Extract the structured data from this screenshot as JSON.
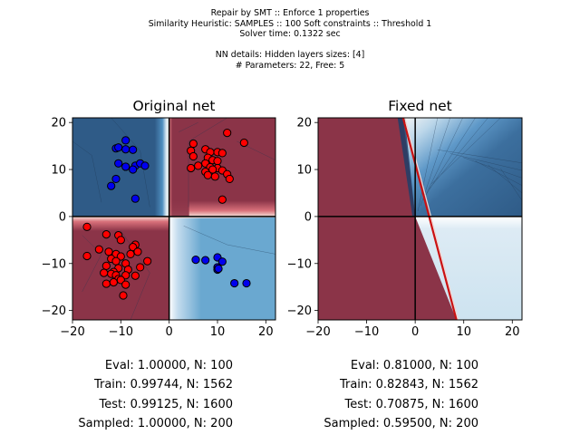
{
  "figure": {
    "suptitle_lines": [
      "Repair by SMT :: Enforce 1 properties",
      "Similarity Heuristic: SAMPLES :: 100 Soft constraints :: Threshold 1",
      "Solver time: 0.1322 sec",
      "",
      "NN details: Hidden layers sizes: [4]",
      "# Parameters: 22, Free: 5"
    ]
  },
  "colors": {
    "dark_blue": "#2f5b87",
    "mid_blue": "#6aa8d0",
    "light_blue": "#cde3f0",
    "dark_red": "#8b3448",
    "point_red": "#ff0000",
    "point_blue": "#0000ee",
    "boundary_red": "#cc1111"
  },
  "chart_data": [
    {
      "type": "scatter",
      "title": "Original net",
      "xlim": [
        -20,
        22
      ],
      "ylim": [
        -22,
        21
      ],
      "xticks": [
        -20,
        -10,
        0,
        10,
        20
      ],
      "yticks": [
        -20,
        -10,
        0,
        10,
        20
      ],
      "grid": false,
      "stats": [
        "Eval: 1.00000, N: 100",
        "Train: 0.99744, N: 1562",
        "Test: 0.99125, N: 1600",
        "Sampled: 1.00000, N: 200"
      ],
      "series": [
        {
          "color": "blue",
          "points": [
            [
              -11,
              14.5
            ],
            [
              -10.5,
              14.7
            ],
            [
              -9,
              14.3
            ],
            [
              -7.5,
              14.2
            ],
            [
              -9,
              16.2
            ],
            [
              -10.5,
              11.3
            ],
            [
              -9,
              10.6
            ],
            [
              -7,
              10.8
            ],
            [
              -6,
              11.3
            ],
            [
              -5,
              10.8
            ],
            [
              -7.5,
              10
            ],
            [
              -11,
              8
            ],
            [
              -12,
              6.5
            ],
            [
              -7,
              3.8
            ],
            [
              5.5,
              -9.2
            ],
            [
              7.5,
              -9.3
            ],
            [
              10,
              -8.7
            ],
            [
              11,
              -9.6
            ],
            [
              10,
              -10.8
            ],
            [
              10,
              -11.3
            ],
            [
              10.2,
              -11.1
            ],
            [
              13.5,
              -14.2
            ],
            [
              16,
              -14.2
            ]
          ]
        },
        {
          "color": "red",
          "points": [
            [
              -17,
              -2.2
            ],
            [
              -17,
              -8.4
            ],
            [
              -14.5,
              -7
            ],
            [
              -13,
              -3.8
            ],
            [
              -10.5,
              -4
            ],
            [
              -10,
              -5
            ],
            [
              -12.5,
              -7.5
            ],
            [
              -11,
              -8
            ],
            [
              -10,
              -8.5
            ],
            [
              -7,
              -6
            ],
            [
              -7.5,
              -6.5
            ],
            [
              -6.5,
              -7.5
            ],
            [
              -8,
              -8
            ],
            [
              -12,
              -9
            ],
            [
              -11,
              -9.5
            ],
            [
              -9,
              -10
            ],
            [
              -13,
              -10.5
            ],
            [
              -10.5,
              -11
            ],
            [
              -8.5,
              -11.3
            ],
            [
              -6,
              -10.8
            ],
            [
              -4.5,
              -9.5
            ],
            [
              -11.5,
              -11.8
            ],
            [
              -12,
              -12.2
            ],
            [
              -13.5,
              -12
            ],
            [
              -11,
              -12.5
            ],
            [
              -9,
              -12.5
            ],
            [
              -7,
              -12.6
            ],
            [
              -10.5,
              -13.3
            ],
            [
              -10,
              -13.5
            ],
            [
              -13,
              -14.3
            ],
            [
              -11.5,
              -14
            ],
            [
              -9,
              -14.5
            ],
            [
              -9.5,
              -16.8
            ],
            [
              12,
              17.8
            ],
            [
              15.5,
              15.7
            ],
            [
              5,
              15.5
            ],
            [
              4.5,
              14
            ],
            [
              7.5,
              14.3
            ],
            [
              8.5,
              13.7
            ],
            [
              10,
              13.7
            ],
            [
              11,
              13.5
            ],
            [
              5,
              12.8
            ],
            [
              8,
              12.5
            ],
            [
              9,
              12
            ],
            [
              10,
              11.8
            ],
            [
              7.5,
              11.3
            ],
            [
              6,
              10.8
            ],
            [
              8.5,
              10.5
            ],
            [
              10,
              10.3
            ],
            [
              9,
              10
            ],
            [
              11,
              9.8
            ],
            [
              4.5,
              10.3
            ],
            [
              7.5,
              9.5
            ],
            [
              8,
              8.8
            ],
            [
              9.5,
              8.5
            ],
            [
              12,
              9
            ],
            [
              12.5,
              8
            ],
            [
              11,
              3.6
            ]
          ]
        }
      ]
    },
    {
      "type": "scatter",
      "title": "Fixed net",
      "xlim": [
        -20,
        22
      ],
      "ylim": [
        -22,
        21
      ],
      "xticks": [
        -20,
        -10,
        0,
        10,
        20
      ],
      "yticks": [
        -20,
        -10,
        0,
        10,
        20
      ],
      "grid": false,
      "stats": [
        "Eval: 0.81000, N: 100",
        "Train: 0.82843, N: 1562",
        "Test: 0.70875, N: 1600",
        "Sampled: 0.59500, N: 200"
      ],
      "series": []
    }
  ]
}
